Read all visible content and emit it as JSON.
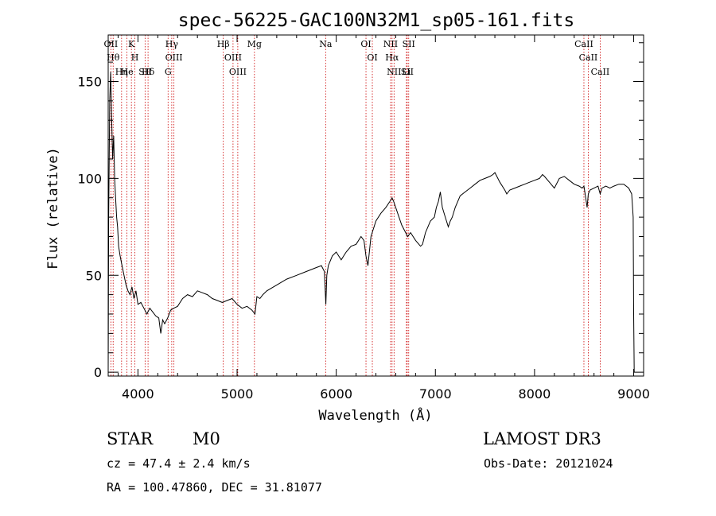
{
  "chart_data": {
    "type": "line",
    "title": "spec-56225-GAC100N32M1_sp05-161.fits",
    "xlabel": "Wavelength (Å)",
    "ylabel": "Flux (relative)",
    "xlim": [
      3700,
      9100
    ],
    "ylim": [
      -2,
      174
    ],
    "xticks": [
      4000,
      5000,
      6000,
      7000,
      8000,
      9000
    ],
    "yticks": [
      0,
      50,
      100,
      150
    ],
    "grid": false,
    "legend": "none",
    "series": [
      {
        "color": "#000000",
        "x": [
          3700,
          3705,
          3715,
          3725,
          3735,
          3745,
          3755,
          3765,
          3775,
          3785,
          3795,
          3805,
          3820,
          3840,
          3860,
          3880,
          3900,
          3920,
          3940,
          3960,
          3980,
          4000,
          4030,
          4060,
          4090,
          4120,
          4150,
          4180,
          4210,
          4230,
          4250,
          4270,
          4300,
          4330,
          4360,
          4400,
          4450,
          4500,
          4550,
          4600,
          4650,
          4700,
          4750,
          4800,
          4850,
          4900,
          4950,
          5000,
          5050,
          5100,
          5150,
          5180,
          5200,
          5230,
          5260,
          5300,
          5400,
          5500,
          5600,
          5700,
          5800,
          5850,
          5880,
          5895,
          5905,
          5920,
          5960,
          6000,
          6050,
          6100,
          6150,
          6200,
          6250,
          6280,
          6300,
          6320,
          6350,
          6400,
          6450,
          6500,
          6540,
          6563,
          6580,
          6620,
          6660,
          6700,
          6720,
          6750,
          6800,
          6850,
          6870,
          6900,
          6950,
          6990,
          7010,
          7030,
          7050,
          7070,
          7100,
          7130,
          7150,
          7170,
          7200,
          7250,
          7300,
          7350,
          7400,
          7450,
          7500,
          7550,
          7580,
          7600,
          7650,
          7700,
          7720,
          7750,
          7800,
          7850,
          7900,
          7950,
          8000,
          8050,
          8080,
          8100,
          8150,
          8200,
          8250,
          8300,
          8350,
          8400,
          8450,
          8480,
          8498,
          8510,
          8530,
          8542,
          8560,
          8600,
          8640,
          8662,
          8680,
          8720,
          8760,
          8800,
          8850,
          8900,
          8950,
          8980,
          8995,
          9000,
          9005
        ],
        "y": [
          0,
          80,
          140,
          155,
          130,
          110,
          122,
          100,
          90,
          80,
          75,
          65,
          60,
          55,
          50,
          45,
          42,
          40,
          44,
          38,
          42,
          35,
          36,
          33,
          30,
          33,
          31,
          29,
          28,
          20,
          27,
          25,
          28,
          32,
          33,
          34,
          38,
          40,
          39,
          42,
          41,
          40,
          38,
          37,
          36,
          37,
          38,
          35,
          33,
          34,
          32,
          30,
          39,
          38,
          40,
          42,
          45,
          48,
          50,
          52,
          54,
          55,
          52,
          35,
          50,
          55,
          60,
          62,
          58,
          62,
          65,
          66,
          70,
          68,
          60,
          55,
          70,
          78,
          82,
          85,
          88,
          90,
          88,
          82,
          76,
          72,
          70,
          72,
          68,
          65,
          66,
          72,
          78,
          80,
          85,
          88,
          93,
          85,
          80,
          75,
          78,
          80,
          85,
          91,
          93,
          95,
          97,
          99,
          100,
          101,
          102,
          103,
          98,
          94,
          92,
          94,
          95,
          96,
          97,
          98,
          99,
          100,
          102,
          101,
          98,
          95,
          100,
          101,
          99,
          97,
          96,
          95,
          96,
          92,
          85,
          92,
          94,
          95,
          96,
          92,
          95,
          96,
          95,
          96,
          97,
          97,
          95,
          92,
          80,
          30,
          0
        ]
      }
    ],
    "line_markers": [
      {
        "label": "OII",
        "x": 3727
      },
      {
        "label": "Hθ",
        "x": 3750
      },
      {
        "label": "Hη",
        "x": 3835
      },
      {
        "label": "K",
        "x": 3934
      },
      {
        "label": "H",
        "x": 3969
      },
      {
        "label": "He",
        "x": 3889
      },
      {
        "label": "SII",
        "x": 4072
      },
      {
        "label": "Hδ",
        "x": 4102
      },
      {
        "label": "Hγ",
        "x": 4341
      },
      {
        "label": "OIII",
        "x": 4363
      },
      {
        "label": "G",
        "x": 4304
      },
      {
        "label": "Hβ",
        "x": 4861
      },
      {
        "label": "OIII",
        "x": 4959
      },
      {
        "label": "OIII",
        "x": 5007
      },
      {
        "label": "Mg",
        "x": 5175
      },
      {
        "label": "Na",
        "x": 5893
      },
      {
        "label": "OI",
        "x": 6300
      },
      {
        "label": "OI",
        "x": 6364
      },
      {
        "label": "NII",
        "x": 6548
      },
      {
        "label": "Hα",
        "x": 6563
      },
      {
        "label": "NII",
        "x": 6583
      },
      {
        "label": "Li",
        "x": 6708
      },
      {
        "label": "SII",
        "x": 6716
      },
      {
        "label": "SII",
        "x": 6731
      },
      {
        "label": "CaII",
        "x": 8498
      },
      {
        "label": "CaII",
        "x": 8542
      },
      {
        "label": "CaII",
        "x": 8662
      }
    ],
    "marker_color": "#cc0000"
  },
  "info": {
    "class": "STAR",
    "subclass": "M0",
    "survey": "LAMOST DR3",
    "cz": "cz = 47.4 ± 2.4 km/s",
    "obs_date": "Obs-Date: 20121024",
    "coords": "RA = 100.47860, DEC =  31.81077"
  }
}
